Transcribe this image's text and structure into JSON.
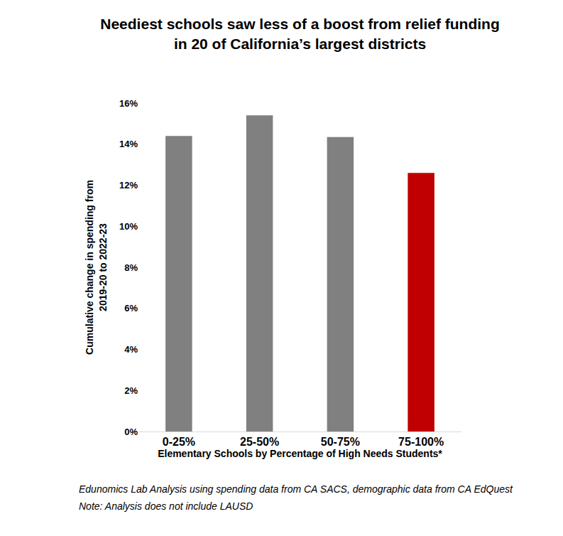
{
  "chart_data": {
    "type": "bar",
    "title": "Neediest schools saw less of a boost from relief funding\nin 20 of California’s largest districts",
    "x_label": "Elementary Schools by Percentage of High Needs Students*",
    "y_label": "Cumulative change in spending from\n2019-20 to 2022-23",
    "categories": [
      "0-25%",
      "25-50%",
      "50-75%",
      "75-100%"
    ],
    "values": [
      14.4,
      15.4,
      14.35,
      12.6
    ],
    "colors": [
      "#808080",
      "#808080",
      "#808080",
      "#c00000"
    ],
    "ylim": [
      0,
      16
    ],
    "yticks": [
      {
        "value": 0,
        "label": "0%"
      },
      {
        "value": 2,
        "label": "2%"
      },
      {
        "value": 4,
        "label": "4%"
      },
      {
        "value": 6,
        "label": "6%"
      },
      {
        "value": 8,
        "label": "8%"
      },
      {
        "value": 10,
        "label": "10%"
      },
      {
        "value": 12,
        "label": "12%"
      },
      {
        "value": 14,
        "label": "14%"
      },
      {
        "value": 16,
        "label": "16%"
      }
    ],
    "grid": false,
    "data_labels": false,
    "annotations": [
      "Edunomics Lab Analysis using spending data from CA SACS, demographic data from CA EdQuest",
      "Note: Analysis does not include LAUSD"
    ]
  }
}
